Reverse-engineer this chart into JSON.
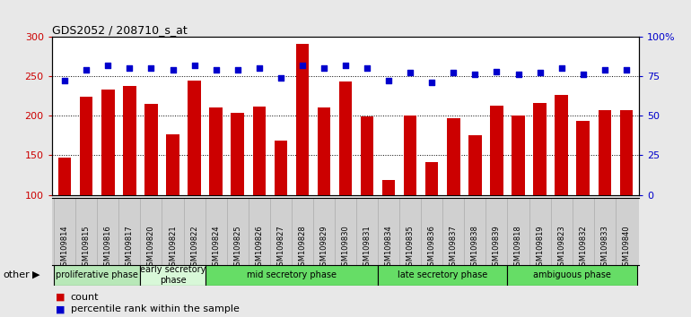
{
  "title": "GDS2052 / 208710_s_at",
  "samples": [
    "GSM109814",
    "GSM109815",
    "GSM109816",
    "GSM109817",
    "GSM109820",
    "GSM109821",
    "GSM109822",
    "GSM109824",
    "GSM109825",
    "GSM109826",
    "GSM109827",
    "GSM109828",
    "GSM109829",
    "GSM109830",
    "GSM109831",
    "GSM109834",
    "GSM109835",
    "GSM109836",
    "GSM109837",
    "GSM109838",
    "GSM109839",
    "GSM109818",
    "GSM109819",
    "GSM109823",
    "GSM109832",
    "GSM109833",
    "GSM109840"
  ],
  "counts": [
    147,
    224,
    233,
    237,
    215,
    177,
    244,
    210,
    204,
    211,
    169,
    291,
    210,
    243,
    199,
    119,
    200,
    141,
    197,
    175,
    213,
    200,
    216,
    226,
    194,
    207,
    207
  ],
  "percentiles": [
    72,
    79,
    82,
    80,
    80,
    79,
    82,
    79,
    79,
    80,
    74,
    82,
    80,
    82,
    80,
    72,
    77,
    71,
    77,
    76,
    78,
    76,
    77,
    80,
    76,
    79,
    79
  ],
  "bar_color": "#cc0000",
  "dot_color": "#0000cc",
  "phases": [
    {
      "label": "proliferative phase",
      "start": 0,
      "end": 4,
      "color": "#b8e8b8"
    },
    {
      "label": "early secretory\nphase",
      "start": 4,
      "end": 7,
      "color": "#d8f8d8"
    },
    {
      "label": "mid secretory phase",
      "start": 7,
      "end": 15,
      "color": "#66dd66"
    },
    {
      "label": "late secretory phase",
      "start": 15,
      "end": 21,
      "color": "#66dd66"
    },
    {
      "label": "ambiguous phase",
      "start": 21,
      "end": 27,
      "color": "#66dd66"
    }
  ],
  "ylim_left": [
    100,
    300
  ],
  "ylim_right": [
    0,
    100
  ],
  "yticks_left": [
    100,
    150,
    200,
    250,
    300
  ],
  "ytick_labels_left": [
    "100",
    "150",
    "200",
    "250",
    "300"
  ],
  "yticks_right": [
    0,
    25,
    50,
    75,
    100
  ],
  "ytick_labels_right": [
    "0",
    "25",
    "50",
    "75",
    "100%"
  ],
  "fig_bg": "#e8e8e8",
  "plot_bg": "#ffffff",
  "xticklabel_bg": "#d0d0d0",
  "other_label": "other",
  "legend_count_label": "count",
  "legend_pct_label": "percentile rank within the sample"
}
